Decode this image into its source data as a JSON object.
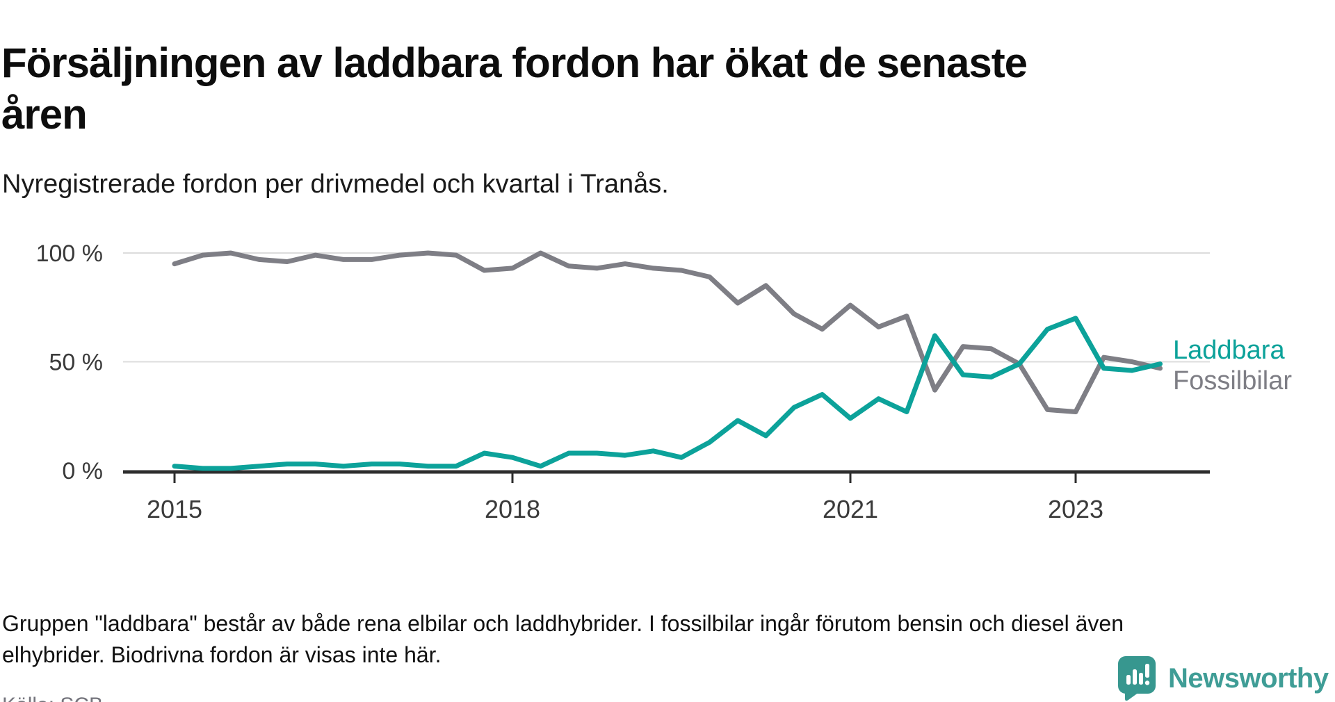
{
  "title_lines": [
    "Försäljningen av laddbara fordon har ökat de senaste",
    "åren"
  ],
  "subtitle": "Nyregistrerade fordon per drivmedel och kvartal i Tranås.",
  "footnote_lines": [
    "Gruppen \"laddbara\" består av både rena elbilar och laddhybrider. I fossilbilar ingår förutom bensin och diesel även",
    "elhybrider. Biodrivna fordon är visas inte här."
  ],
  "source": "Källa: SCB",
  "logo": {
    "brand": "Newsworthy",
    "icon": "speech-bubble-bar-chart-icon"
  },
  "colors": {
    "laddbara": "#0ca29a",
    "fossilbilar": "#7e7e85",
    "gridline": "#dcdcdc",
    "axis": "#2d2d2d",
    "logo_teal": "#37978f"
  },
  "chart_data": {
    "type": "line",
    "title": "Försäljningen av laddbara fordon har ökat de senaste åren",
    "subtitle": "Nyregistrerade fordon per drivmedel och kvartal i Tranås.",
    "x": [
      "2015 Q1",
      "2015 Q2",
      "2015 Q3",
      "2015 Q4",
      "2016 Q1",
      "2016 Q2",
      "2016 Q3",
      "2016 Q4",
      "2017 Q1",
      "2017 Q2",
      "2017 Q3",
      "2017 Q4",
      "2018 Q1",
      "2018 Q2",
      "2018 Q3",
      "2018 Q4",
      "2019 Q1",
      "2019 Q2",
      "2019 Q3",
      "2019 Q4",
      "2020 Q1",
      "2020 Q2",
      "2020 Q3",
      "2020 Q4",
      "2021 Q1",
      "2021 Q2",
      "2021 Q3",
      "2021 Q4",
      "2022 Q1",
      "2022 Q2",
      "2022 Q3",
      "2022 Q4",
      "2023 Q1",
      "2023 Q2",
      "2023 Q3",
      "2023 Q4"
    ],
    "series": [
      {
        "name": "Laddbara",
        "color": "#0ca29a",
        "values": [
          2,
          1,
          1,
          2,
          3,
          3,
          2,
          3,
          3,
          2,
          2,
          8,
          6,
          2,
          8,
          8,
          7,
          9,
          6,
          13,
          23,
          16,
          29,
          35,
          24,
          33,
          27,
          62,
          44,
          43,
          49,
          65,
          70,
          47,
          46,
          49
        ]
      },
      {
        "name": "Fossilbilar",
        "color": "#7e7e85",
        "values": [
          95,
          99,
          100,
          97,
          96,
          99,
          97,
          97,
          99,
          100,
          99,
          92,
          93,
          100,
          94,
          93,
          95,
          93,
          92,
          89,
          77,
          85,
          72,
          65,
          76,
          66,
          71,
          37,
          57,
          56,
          49,
          28,
          27,
          52,
          50,
          47
        ]
      }
    ],
    "ylabel": "",
    "xlabel": "",
    "ylim": [
      0,
      100
    ],
    "yticks": [
      {
        "value": 0,
        "label": "0 %"
      },
      {
        "value": 50,
        "label": "50 %"
      },
      {
        "value": 100,
        "label": "100 %"
      }
    ],
    "xticks": [
      {
        "index": 0,
        "label": "2015"
      },
      {
        "index": 12,
        "label": "2018"
      },
      {
        "index": 24,
        "label": "2021"
      },
      {
        "index": 32,
        "label": "2023"
      }
    ],
    "grid": "horizontal",
    "legend_position": "right-of-line-ends",
    "unit": "percent"
  }
}
